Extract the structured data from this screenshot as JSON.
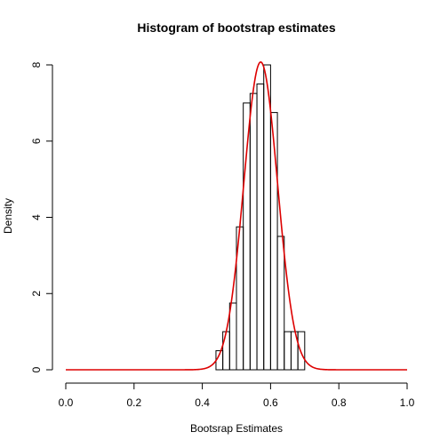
{
  "chart_data": {
    "type": "histogram",
    "title": "Histogram of bootstrap estimates",
    "xlabel": "Bootsrap Estimates",
    "ylabel": "Density",
    "xlim": [
      0,
      1
    ],
    "ylim": [
      0,
      8
    ],
    "x_ticks": [
      "0.0",
      "0.2",
      "0.4",
      "0.6",
      "0.8",
      "1.0"
    ],
    "y_ticks": [
      "0",
      "2",
      "4",
      "6",
      "8"
    ],
    "bin_width": 0.02,
    "bins": [
      {
        "x0": 0.44,
        "x1": 0.46,
        "density": 0.5
      },
      {
        "x0": 0.46,
        "x1": 0.48,
        "density": 1.0
      },
      {
        "x0": 0.48,
        "x1": 0.5,
        "density": 1.75
      },
      {
        "x0": 0.5,
        "x1": 0.52,
        "density": 3.75
      },
      {
        "x0": 0.52,
        "x1": 0.54,
        "density": 7.0
      },
      {
        "x0": 0.54,
        "x1": 0.56,
        "density": 7.25
      },
      {
        "x0": 0.56,
        "x1": 0.58,
        "density": 7.5
      },
      {
        "x0": 0.58,
        "x1": 0.6,
        "density": 8.0
      },
      {
        "x0": 0.6,
        "x1": 0.62,
        "density": 6.75
      },
      {
        "x0": 0.62,
        "x1": 0.64,
        "density": 3.5
      },
      {
        "x0": 0.64,
        "x1": 0.66,
        "density": 1.0
      },
      {
        "x0": 0.66,
        "x1": 0.68,
        "density": 1.0
      },
      {
        "x0": 0.68,
        "x1": 0.7,
        "density": 1.0
      }
    ],
    "density_curve": {
      "type": "normal",
      "mean": 0.571,
      "sd": 0.0494,
      "color": "#dd0000",
      "x_range": [
        0,
        1
      ]
    },
    "grid": false
  }
}
